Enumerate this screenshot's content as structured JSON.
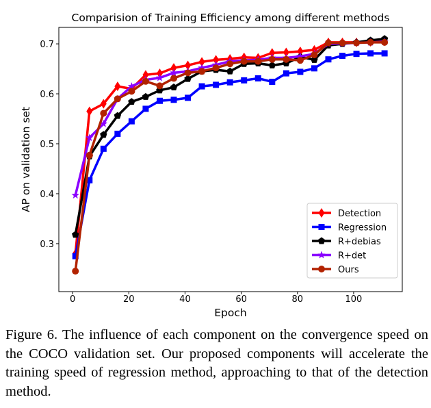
{
  "chart_data": {
    "type": "line",
    "title": "Comparision of Training Efficiency among different methods",
    "xlabel": "Epoch",
    "ylabel": "AP on validation set",
    "xlim": [
      -4.9,
      117.3
    ],
    "ylim": [
      0.204,
      0.733
    ],
    "xticks": [
      0,
      20,
      40,
      60,
      80,
      100
    ],
    "yticks": [
      0.3,
      0.4,
      0.5,
      0.6,
      0.7
    ],
    "grid": false,
    "legend_position": "bottom-right",
    "x": [
      1,
      6,
      11,
      16,
      21,
      26,
      31,
      36,
      41,
      46,
      51,
      56,
      61,
      66,
      71,
      76,
      81,
      86,
      91,
      96,
      101,
      106,
      111
    ],
    "series": [
      {
        "name": "Detection",
        "color": "#ff0000",
        "marker": "diamond",
        "values": [
          0.28,
          0.565,
          0.58,
          0.615,
          0.61,
          0.638,
          0.641,
          0.652,
          0.657,
          0.664,
          0.668,
          0.67,
          0.673,
          0.672,
          0.682,
          0.683,
          0.685,
          0.688,
          0.703,
          0.703,
          0.703,
          0.704,
          0.705
        ]
      },
      {
        "name": "Regression",
        "color": "#0000ff",
        "marker": "square",
        "values": [
          0.275,
          0.427,
          0.49,
          0.52,
          0.545,
          0.57,
          0.586,
          0.588,
          0.592,
          0.615,
          0.618,
          0.623,
          0.627,
          0.631,
          0.624,
          0.641,
          0.644,
          0.651,
          0.669,
          0.676,
          0.68,
          0.681,
          0.681
        ]
      },
      {
        "name": "R+debias",
        "color": "#000000",
        "marker": "pentagon",
        "values": [
          0.318,
          0.475,
          0.518,
          0.556,
          0.584,
          0.594,
          0.607,
          0.613,
          0.63,
          0.645,
          0.648,
          0.645,
          0.66,
          0.661,
          0.657,
          0.661,
          0.674,
          0.668,
          0.697,
          0.7,
          0.703,
          0.707,
          0.71
        ]
      },
      {
        "name": "R+det",
        "color": "#8b00ff",
        "marker": "star",
        "values": [
          0.397,
          0.512,
          0.54,
          0.59,
          0.615,
          0.628,
          0.632,
          0.642,
          0.645,
          0.652,
          0.658,
          0.665,
          0.667,
          0.668,
          0.672,
          0.672,
          0.675,
          0.68,
          0.7,
          0.701,
          0.702,
          0.703,
          0.704
        ]
      },
      {
        "name": "Ours",
        "color": "#b22200",
        "marker": "circle",
        "values": [
          0.245,
          0.477,
          0.561,
          0.59,
          0.605,
          0.625,
          0.616,
          0.631,
          0.642,
          0.645,
          0.652,
          0.66,
          0.665,
          0.665,
          0.669,
          0.669,
          0.667,
          0.678,
          0.702,
          0.702,
          0.702,
          0.703,
          0.703
        ]
      }
    ]
  },
  "caption": "Figure 6. The influence of each component on the convergence speed on the COCO validation set. Our proposed components will accelerate the training speed of regression method, approaching to that of the detection method."
}
